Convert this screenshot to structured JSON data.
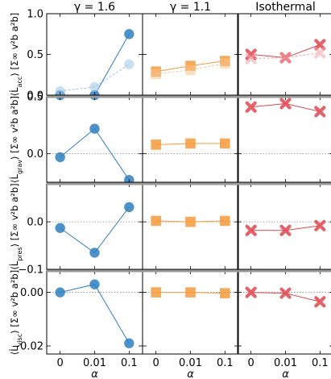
{
  "columns": [
    {
      "title": "γ = 1.6",
      "marker": "circle",
      "color": "#2f7fc1",
      "faded_color": "#9ec4e4"
    },
    {
      "title": "γ = 1.1",
      "marker": "square",
      "color": "#f59a3c",
      "faded_color": "#f8c48f"
    },
    {
      "title": "Isothermal",
      "marker": "cross",
      "color": "#e0474f",
      "faded_color": "#f0a2a6"
    }
  ],
  "rows": [
    {
      "ylabel": "⟨L̇acc⟩ [Σ∞ v_b² a_b²]",
      "ylim": [
        0,
        1.0
      ],
      "ticks": [
        {
          "v": 0.0,
          "t": "0.0"
        },
        {
          "v": 0.5,
          "t": "0.5"
        },
        {
          "v": 1.0,
          "t": "1.0"
        }
      ]
    },
    {
      "ylabel": "⟨L̇grav⟩ [Σ∞ v_b² a_b²]",
      "ylim": [
        -0.25,
        0.5
      ],
      "ticks": [
        {
          "v": 0.0,
          "t": "0.0"
        },
        {
          "v": 0.5,
          "t": "0.5"
        }
      ]
    },
    {
      "ylabel": "⟨L̇pres⟩ [Σ∞ v_b² a_b²]",
      "ylim": [
        -0.1,
        0.08
      ],
      "ticks": [
        {
          "v": 0.0,
          "t": "0.0"
        },
        {
          "v": -0.1,
          "t": "−0.1"
        }
      ]
    },
    {
      "ylabel": "⟨L̇visc⟩ [Σ∞ v_b² a_b²]",
      "ylim": [
        -0.023,
        0.008
      ],
      "ticks": [
        {
          "v": 0.0,
          "t": "0.00"
        },
        {
          "v": -0.02,
          "t": "−0.02"
        }
      ]
    }
  ],
  "ylabel_parts": [
    {
      "sym": "L̇",
      "sub": "acc"
    },
    {
      "sym": "L̇",
      "sub": "grav"
    },
    {
      "sym": "L̇",
      "sub": "pres"
    },
    {
      "sym": "L̇",
      "sub": "visc"
    }
  ],
  "ylabel_unit": "[Σ∞ v²b a²b]",
  "x_ticks": [
    "0",
    "0.01",
    "0.1"
  ],
  "xlabel": "α",
  "chart_data": [
    {
      "type": "line",
      "panel": "acc / γ=1.6",
      "categories": [
        "0",
        "0.01",
        "0.1"
      ],
      "series": [
        {
          "values": [
            0.0,
            0.0,
            0.75
          ]
        },
        {
          "values": [
            0.05,
            0.1,
            0.38
          ],
          "faded": true
        }
      ]
    },
    {
      "type": "line",
      "panel": "acc / γ=1.1",
      "categories": [
        "0",
        "0.01",
        "0.1"
      ],
      "series": [
        {
          "values": [
            0.29,
            0.36,
            0.42
          ]
        },
        {
          "values": [
            0.26,
            0.31,
            0.39
          ],
          "faded": true
        }
      ]
    },
    {
      "type": "line",
      "panel": "acc / isothermal",
      "categories": [
        "0",
        "0.01",
        "0.1"
      ],
      "series": [
        {
          "values": [
            0.5,
            0.46,
            0.62
          ]
        },
        {
          "values": [
            0.45,
            0.46,
            0.52
          ],
          "faded": true
        }
      ]
    },
    {
      "type": "line",
      "panel": "grav / γ=1.6",
      "categories": [
        "0",
        "0.01",
        "0.1"
      ],
      "series": [
        {
          "values": [
            -0.03,
            0.22,
            -0.23
          ]
        }
      ]
    },
    {
      "type": "line",
      "panel": "grav / γ=1.1",
      "categories": [
        "0",
        "0.01",
        "0.1"
      ],
      "series": [
        {
          "values": [
            0.08,
            0.09,
            0.09
          ]
        }
      ]
    },
    {
      "type": "line",
      "panel": "grav / isothermal",
      "categories": [
        "0",
        "0.01",
        "0.1"
      ],
      "series": [
        {
          "values": [
            0.41,
            0.44,
            0.37
          ]
        }
      ]
    },
    {
      "type": "line",
      "panel": "pres / γ=1.6",
      "categories": [
        "0",
        "0.01",
        "0.1"
      ],
      "series": [
        {
          "values": [
            -0.013,
            -0.065,
            0.031
          ]
        }
      ]
    },
    {
      "type": "line",
      "panel": "pres / γ=1.1",
      "categories": [
        "0",
        "0.01",
        "0.1"
      ],
      "series": [
        {
          "values": [
            0.002,
            0.0,
            0.002
          ]
        }
      ]
    },
    {
      "type": "line",
      "panel": "pres / isothermal",
      "categories": [
        "0",
        "0.01",
        "0.1"
      ],
      "series": [
        {
          "values": [
            -0.018,
            -0.018,
            -0.008
          ]
        }
      ]
    },
    {
      "type": "line",
      "panel": "visc / γ=1.6",
      "categories": [
        "0",
        "0.01",
        "0.1"
      ],
      "series": [
        {
          "values": [
            0.0,
            0.003,
            -0.019
          ]
        }
      ]
    },
    {
      "type": "line",
      "panel": "visc / γ=1.1",
      "categories": [
        "0",
        "0.01",
        "0.1"
      ],
      "series": [
        {
          "values": [
            0.0,
            0.0,
            -0.0003
          ]
        }
      ]
    },
    {
      "type": "line",
      "panel": "visc / isothermal",
      "categories": [
        "0",
        "0.01",
        "0.1"
      ],
      "series": [
        {
          "values": [
            0.0,
            -0.0003,
            -0.0035
          ]
        }
      ]
    }
  ]
}
